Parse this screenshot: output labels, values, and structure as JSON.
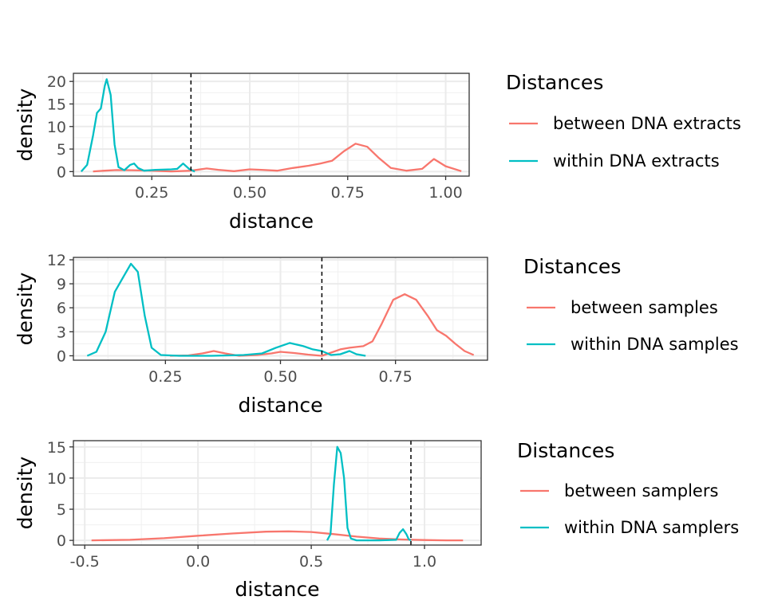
{
  "chart_data": [
    {
      "type": "line",
      "title": "",
      "xlabel": "distance",
      "ylabel": "density",
      "xlim": [
        0.05,
        1.06
      ],
      "ylim": [
        -1.0,
        21.8
      ],
      "x_ticks": [
        0.25,
        0.5,
        0.75,
        1.0
      ],
      "x_tick_labels": [
        "0.25",
        "0.50",
        "0.75",
        "1.00"
      ],
      "y_ticks": [
        0,
        5,
        10,
        15,
        20
      ],
      "y_tick_labels": [
        "0",
        "5",
        "10",
        "15",
        "20"
      ],
      "grid": true,
      "threshold": 0.35,
      "legend_title": "Distances",
      "series": [
        {
          "name": "between DNA extracts",
          "color": "#F8766D",
          "points": [
            [
              0.1,
              0.05
            ],
            [
              0.13,
              0.2
            ],
            [
              0.16,
              0.35
            ],
            [
              0.2,
              0.3
            ],
            [
              0.25,
              0.2
            ],
            [
              0.3,
              0.05
            ],
            [
              0.35,
              0.2
            ],
            [
              0.39,
              0.7
            ],
            [
              0.42,
              0.4
            ],
            [
              0.46,
              0.1
            ],
            [
              0.5,
              0.5
            ],
            [
              0.53,
              0.4
            ],
            [
              0.57,
              0.2
            ],
            [
              0.61,
              0.8
            ],
            [
              0.65,
              1.3
            ],
            [
              0.68,
              1.8
            ],
            [
              0.71,
              2.4
            ],
            [
              0.74,
              4.5
            ],
            [
              0.77,
              6.2
            ],
            [
              0.8,
              5.5
            ],
            [
              0.83,
              3.0
            ],
            [
              0.86,
              0.8
            ],
            [
              0.9,
              0.2
            ],
            [
              0.94,
              0.6
            ],
            [
              0.97,
              2.8
            ],
            [
              1.0,
              1.2
            ],
            [
              1.04,
              0.1
            ]
          ]
        },
        {
          "name": "within DNA extracts",
          "color": "#00BFC4",
          "points": [
            [
              0.07,
              0.0
            ],
            [
              0.085,
              1.5
            ],
            [
              0.1,
              8.0
            ],
            [
              0.11,
              13.0
            ],
            [
              0.12,
              14.0
            ],
            [
              0.13,
              19.0
            ],
            [
              0.135,
              20.5
            ],
            [
              0.145,
              17.0
            ],
            [
              0.155,
              6.0
            ],
            [
              0.165,
              1.0
            ],
            [
              0.18,
              0.3
            ],
            [
              0.195,
              1.5
            ],
            [
              0.205,
              1.8
            ],
            [
              0.215,
              0.8
            ],
            [
              0.23,
              0.2
            ],
            [
              0.26,
              0.4
            ],
            [
              0.3,
              0.5
            ],
            [
              0.315,
              0.6
            ],
            [
              0.33,
              1.8
            ],
            [
              0.345,
              0.6
            ],
            [
              0.36,
              0.0
            ]
          ]
        }
      ]
    },
    {
      "type": "line",
      "title": "",
      "xlabel": "distance",
      "ylabel": "density",
      "xlim": [
        0.05,
        0.95
      ],
      "ylim": [
        -0.55,
        12.3
      ],
      "x_ticks": [
        0.25,
        0.5,
        0.75
      ],
      "x_tick_labels": [
        "0.25",
        "0.50",
        "0.75"
      ],
      "y_ticks": [
        0,
        3,
        6,
        9,
        12
      ],
      "y_tick_labels": [
        "0",
        "3",
        "6",
        "9",
        "12"
      ],
      "grid": true,
      "threshold": 0.59,
      "legend_title": "Distances",
      "series": [
        {
          "name": "between samples",
          "color": "#F8766D",
          "points": [
            [
              0.26,
              0.0
            ],
            [
              0.3,
              0.05
            ],
            [
              0.33,
              0.3
            ],
            [
              0.355,
              0.6
            ],
            [
              0.38,
              0.3
            ],
            [
              0.41,
              0.0
            ],
            [
              0.45,
              0.1
            ],
            [
              0.48,
              0.3
            ],
            [
              0.5,
              0.5
            ],
            [
              0.53,
              0.35
            ],
            [
              0.56,
              0.15
            ],
            [
              0.59,
              0.0
            ],
            [
              0.61,
              0.4
            ],
            [
              0.63,
              0.8
            ],
            [
              0.65,
              1.0
            ],
            [
              0.68,
              1.2
            ],
            [
              0.7,
              1.8
            ],
            [
              0.72,
              4.0
            ],
            [
              0.745,
              7.0
            ],
            [
              0.77,
              7.7
            ],
            [
              0.795,
              7.0
            ],
            [
              0.82,
              5.0
            ],
            [
              0.84,
              3.2
            ],
            [
              0.86,
              2.5
            ],
            [
              0.88,
              1.5
            ],
            [
              0.9,
              0.6
            ],
            [
              0.92,
              0.1
            ]
          ]
        },
        {
          "name": "within DNA samples",
          "color": "#00BFC4",
          "points": [
            [
              0.08,
              0.0
            ],
            [
              0.1,
              0.5
            ],
            [
              0.12,
              3.0
            ],
            [
              0.14,
              8.0
            ],
            [
              0.16,
              10.0
            ],
            [
              0.175,
              11.5
            ],
            [
              0.19,
              10.5
            ],
            [
              0.205,
              5.0
            ],
            [
              0.22,
              1.0
            ],
            [
              0.24,
              0.1
            ],
            [
              0.28,
              0.0
            ],
            [
              0.35,
              0.0
            ],
            [
              0.42,
              0.1
            ],
            [
              0.46,
              0.3
            ],
            [
              0.49,
              1.0
            ],
            [
              0.52,
              1.6
            ],
            [
              0.55,
              1.2
            ],
            [
              0.57,
              0.8
            ],
            [
              0.59,
              0.6
            ],
            [
              0.61,
              0.1
            ],
            [
              0.63,
              0.2
            ],
            [
              0.65,
              0.6
            ],
            [
              0.665,
              0.2
            ],
            [
              0.685,
              0.0
            ]
          ]
        }
      ]
    },
    {
      "type": "line",
      "title": "",
      "xlabel": "distance",
      "ylabel": "density",
      "xlim": [
        -0.55,
        1.25
      ],
      "ylim": [
        -0.75,
        16.0
      ],
      "x_ticks": [
        -0.5,
        0.0,
        0.5,
        1.0
      ],
      "x_tick_labels": [
        "-0.5",
        "0.0",
        "0.5",
        "1.0"
      ],
      "y_ticks": [
        0,
        5,
        10,
        15
      ],
      "y_tick_labels": [
        "0",
        "5",
        "10",
        "15"
      ],
      "grid": true,
      "threshold": 0.94,
      "legend_title": "Distances",
      "series": [
        {
          "name": "between samplers",
          "color": "#F8766D",
          "points": [
            [
              -0.47,
              0.0
            ],
            [
              -0.3,
              0.1
            ],
            [
              -0.15,
              0.35
            ],
            [
              0.0,
              0.75
            ],
            [
              0.15,
              1.1
            ],
            [
              0.3,
              1.4
            ],
            [
              0.4,
              1.45
            ],
            [
              0.5,
              1.35
            ],
            [
              0.6,
              1.0
            ],
            [
              0.7,
              0.6
            ],
            [
              0.8,
              0.3
            ],
            [
              0.9,
              0.15
            ],
            [
              1.0,
              0.05
            ],
            [
              1.1,
              0.0
            ],
            [
              1.17,
              0.0
            ]
          ]
        },
        {
          "name": "within DNA samplers",
          "color": "#00BFC4",
          "points": [
            [
              0.57,
              0.0
            ],
            [
              0.585,
              1.0
            ],
            [
              0.6,
              9.0
            ],
            [
              0.615,
              15.0
            ],
            [
              0.63,
              14.0
            ],
            [
              0.645,
              10.0
            ],
            [
              0.66,
              2.0
            ],
            [
              0.675,
              0.3
            ],
            [
              0.7,
              0.0
            ],
            [
              0.8,
              0.0
            ],
            [
              0.875,
              0.1
            ],
            [
              0.89,
              1.2
            ],
            [
              0.905,
              1.8
            ],
            [
              0.92,
              1.0
            ],
            [
              0.93,
              0.2
            ],
            [
              0.94,
              0.0
            ]
          ]
        }
      ]
    }
  ]
}
